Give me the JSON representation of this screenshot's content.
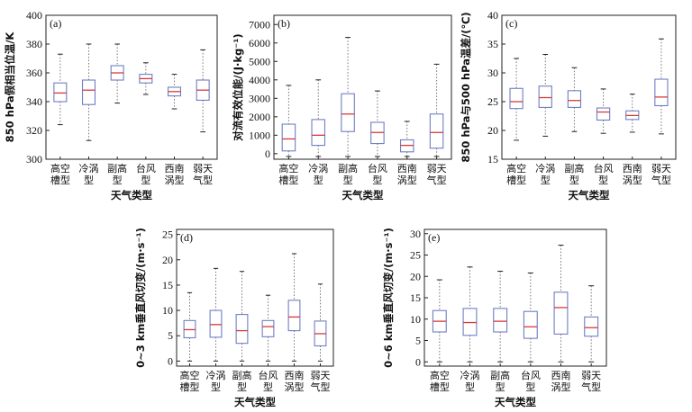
{
  "chart_data": [
    {
      "type": "box",
      "panel_label": "(a)",
      "ylabel": "850 hPa假相当位温/K",
      "xlabel": "天气类型",
      "ylim": [
        300,
        400
      ],
      "yticks": [
        300,
        320,
        340,
        360,
        380,
        400
      ],
      "categories": [
        "高空槽型",
        "冷涡型",
        "副高型",
        "台风型",
        "西南涡型",
        "弱天气型"
      ],
      "category_lines": [
        [
          "高空",
          "槽型"
        ],
        [
          "冷涡",
          "型"
        ],
        [
          "副高",
          "型"
        ],
        [
          "台风",
          "型"
        ],
        [
          "西南",
          "涡型"
        ],
        [
          "弱天",
          "气型"
        ]
      ],
      "boxes": [
        {
          "min": 324,
          "q1": 340,
          "median": 346,
          "q3": 353,
          "max": 373
        },
        {
          "min": 313,
          "q1": 338,
          "median": 348,
          "q3": 355,
          "max": 380
        },
        {
          "min": 339,
          "q1": 355,
          "median": 360,
          "q3": 365,
          "max": 380
        },
        {
          "min": 345,
          "q1": 353,
          "median": 356,
          "q3": 359,
          "max": 367
        },
        {
          "min": 335,
          "q1": 344,
          "median": 347,
          "q3": 350,
          "max": 359
        },
        {
          "min": 319,
          "q1": 341,
          "median": 348,
          "q3": 355,
          "max": 376
        }
      ]
    },
    {
      "type": "box",
      "panel_label": "(b)",
      "ylabel": "对流有效位能/(J·kg⁻¹)",
      "xlabel": "天气类型",
      "ylim": [
        -300,
        7500
      ],
      "yticks": [
        0,
        1000,
        2000,
        3000,
        4000,
        5000,
        6000,
        7000
      ],
      "categories": [
        "高空槽型",
        "冷涡型",
        "副高型",
        "台风型",
        "西南涡型",
        "弱天气型"
      ],
      "category_lines": [
        [
          "高空",
          "槽型"
        ],
        [
          "冷涡",
          "型"
        ],
        [
          "副高",
          "型"
        ],
        [
          "台风",
          "型"
        ],
        [
          "西南",
          "涡型"
        ],
        [
          "弱天",
          "气型"
        ]
      ],
      "boxes": [
        {
          "min": -150,
          "q1": 150,
          "median": 800,
          "q3": 1600,
          "max": 3700
        },
        {
          "min": -150,
          "q1": 450,
          "median": 1000,
          "q3": 1850,
          "max": 4000
        },
        {
          "min": -150,
          "q1": 1200,
          "median": 2150,
          "q3": 3250,
          "max": 6300
        },
        {
          "min": -150,
          "q1": 550,
          "median": 1150,
          "q3": 1700,
          "max": 3400
        },
        {
          "min": -150,
          "q1": 100,
          "median": 450,
          "q3": 750,
          "max": 1750
        },
        {
          "min": -150,
          "q1": 300,
          "median": 1150,
          "q3": 2150,
          "max": 4850
        }
      ]
    },
    {
      "type": "box",
      "panel_label": "(c)",
      "ylabel": "850 hPa与500 hPa温差/(℃)",
      "xlabel": "天气类型",
      "ylim": [
        15,
        40
      ],
      "yticks": [
        15,
        20,
        25,
        30,
        35,
        40
      ],
      "categories": [
        "高空槽型",
        "冷涡型",
        "副高型",
        "台风型",
        "西南涡型",
        "弱天气型"
      ],
      "category_lines": [
        [
          "高空",
          "槽型"
        ],
        [
          "冷涡",
          "型"
        ],
        [
          "副高",
          "型"
        ],
        [
          "台风",
          "型"
        ],
        [
          "西南",
          "涡型"
        ],
        [
          "弱天",
          "气型"
        ]
      ],
      "boxes": [
        {
          "min": 18.3,
          "q1": 23.8,
          "median": 25.0,
          "q3": 27.3,
          "max": 32.5
        },
        {
          "min": 19.0,
          "q1": 24.0,
          "median": 25.7,
          "q3": 27.7,
          "max": 33.2
        },
        {
          "min": 19.8,
          "q1": 24.0,
          "median": 25.2,
          "q3": 26.9,
          "max": 30.9
        },
        {
          "min": 19.5,
          "q1": 21.8,
          "median": 23.2,
          "q3": 23.9,
          "max": 27.2
        },
        {
          "min": 19.7,
          "q1": 21.9,
          "median": 22.6,
          "q3": 23.4,
          "max": 26.3
        },
        {
          "min": 19.4,
          "q1": 24.3,
          "median": 25.8,
          "q3": 28.9,
          "max": 35.9
        }
      ]
    },
    {
      "type": "box",
      "panel_label": "(d)",
      "ylabel": "0~3 km垂直风切变/(m·s⁻¹)",
      "xlabel": "天气类型",
      "ylim": [
        -1,
        26
      ],
      "yticks": [
        0,
        5,
        10,
        15,
        20,
        25
      ],
      "categories": [
        "高空槽型",
        "冷涡型",
        "副高型",
        "台风型",
        "西南涡型",
        "弱天气型"
      ],
      "category_lines": [
        [
          "高空",
          "槽型"
        ],
        [
          "冷涡",
          "型"
        ],
        [
          "副高",
          "型"
        ],
        [
          "台风",
          "型"
        ],
        [
          "西南",
          "涡型"
        ],
        [
          "弱天",
          "气型"
        ]
      ],
      "boxes": [
        {
          "min": 0.0,
          "q1": 4.6,
          "median": 6.2,
          "q3": 8.0,
          "max": 13.5
        },
        {
          "min": 0.0,
          "q1": 4.7,
          "median": 7.2,
          "q3": 10.0,
          "max": 18.3
        },
        {
          "min": 0.0,
          "q1": 3.5,
          "median": 6.0,
          "q3": 9.2,
          "max": 17.7
        },
        {
          "min": 0.0,
          "q1": 4.8,
          "median": 6.8,
          "q3": 8.0,
          "max": 13.0
        },
        {
          "min": 0.0,
          "q1": 6.0,
          "median": 8.7,
          "q3": 12.0,
          "max": 21.2
        },
        {
          "min": 0.0,
          "q1": 3.0,
          "median": 5.4,
          "q3": 7.9,
          "max": 15.2
        }
      ]
    },
    {
      "type": "box",
      "panel_label": "(e)",
      "ylabel": "0~6 km垂直风切变/(m·s⁻¹)",
      "xlabel": "天气类型",
      "ylim": [
        -1,
        31
      ],
      "yticks": [
        0,
        5,
        10,
        15,
        20,
        25,
        30
      ],
      "categories": [
        "高空槽型",
        "冷涡型",
        "副高型",
        "台风型",
        "西南涡型",
        "弱天气型"
      ],
      "category_lines": [
        [
          "高空",
          "槽型"
        ],
        [
          "冷涡",
          "型"
        ],
        [
          "副高",
          "型"
        ],
        [
          "台风",
          "型"
        ],
        [
          "西南",
          "涡型"
        ],
        [
          "弱天",
          "气型"
        ]
      ],
      "boxes": [
        {
          "min": 0.0,
          "q1": 7.0,
          "median": 9.5,
          "q3": 12.0,
          "max": 19.2
        },
        {
          "min": 0.0,
          "q1": 6.2,
          "median": 9.2,
          "q3": 12.5,
          "max": 22.2
        },
        {
          "min": 0.0,
          "q1": 7.0,
          "median": 9.5,
          "q3": 12.5,
          "max": 21.2
        },
        {
          "min": 0.0,
          "q1": 5.5,
          "median": 8.2,
          "q3": 11.8,
          "max": 20.8
        },
        {
          "min": 0.0,
          "q1": 6.5,
          "median": 12.7,
          "q3": 16.3,
          "max": 27.3
        },
        {
          "min": 0.0,
          "q1": 6.0,
          "median": 8.0,
          "q3": 10.5,
          "max": 17.8
        }
      ]
    }
  ],
  "style": {
    "box_color": "#6f7fc4",
    "median_color": "#d83a3a",
    "whisker_color": "#777777",
    "axis_color": "#222222"
  }
}
